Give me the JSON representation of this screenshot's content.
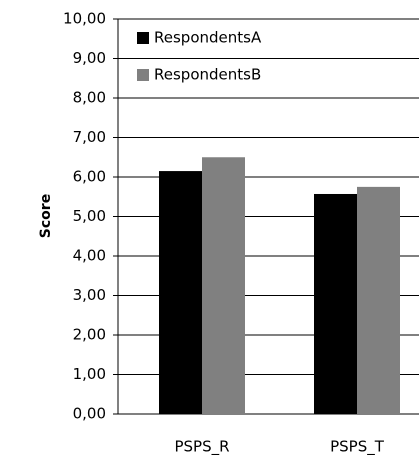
{
  "chart_data": {
    "type": "bar",
    "y_label": "Score",
    "categories": [
      "PSPS_R",
      "PSPS_T"
    ],
    "series": [
      {
        "name": "RespondentsA",
        "color": "#000000",
        "values": [
          6.15,
          5.57
        ]
      },
      {
        "name": "RespondentsB",
        "color": "#808080",
        "values": [
          6.5,
          5.75
        ]
      }
    ],
    "ylim": [
      0,
      10
    ],
    "yticks": [
      {
        "value": 0,
        "label": "0,00"
      },
      {
        "value": 1,
        "label": "1,00"
      },
      {
        "value": 2,
        "label": "2,00"
      },
      {
        "value": 3,
        "label": "3,00"
      },
      {
        "value": 4,
        "label": "4,00"
      },
      {
        "value": 5,
        "label": "5,00"
      },
      {
        "value": 6,
        "label": "6,00"
      },
      {
        "value": 7,
        "label": "7,00"
      },
      {
        "value": 8,
        "label": "8,00"
      },
      {
        "value": 9,
        "label": "9,00"
      },
      {
        "value": 10,
        "label": "10,00"
      }
    ],
    "grid": true
  }
}
